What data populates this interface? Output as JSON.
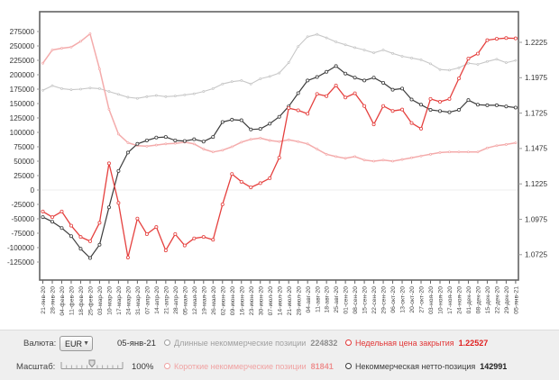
{
  "controls": {
    "currency_label": "Валюта:",
    "currency_value": "EUR",
    "date": "05-янв-21",
    "scale_label": "Масштаб:",
    "scale_value": "100%",
    "legend": [
      {
        "label": "Длинные некоммерческие позиции",
        "value": "224832",
        "color": "#a0a0a0",
        "value_color": "#8d8d8d"
      },
      {
        "label": "Недельная цена закрытия",
        "value": "1.22527",
        "color": "#e23838",
        "value_color": "#e02020"
      },
      {
        "label": "Короткие некоммерческие позиции",
        "value": "81841",
        "color": "#f0a2a2",
        "value_color": "#ee9090"
      },
      {
        "label": "Некоммерческая нетто-позиция",
        "value": "142991",
        "color": "#3a3a3a",
        "value_color": "#222222"
      }
    ]
  },
  "chart_data": {
    "type": "line",
    "title": "",
    "left_axis": {
      "max": 275000,
      "min": -125000,
      "step": 25000
    },
    "right_axis": {
      "max": 1.2225,
      "min": 1.0725,
      "step": 0.025,
      "decimals": 4
    },
    "x_labels": [
      "21-янв-20",
      "28-янв-20",
      "04-фев-20",
      "11-фев-20",
      "18-фев-20",
      "25-фев-20",
      "03-мар-20",
      "10-мар-20",
      "17-мар-20",
      "24-мар-20",
      "31-мар-20",
      "07-апр-20",
      "14-апр-20",
      "21-апр-20",
      "28-апр-20",
      "05-мая-20",
      "12-мая-20",
      "19-мая-20",
      "26-мая-20",
      "02-июн-20",
      "09-июн-20",
      "16-июн-20",
      "23-июн-20",
      "30-июн-20",
      "07-июл-20",
      "14-июл-20",
      "21-июл-20",
      "28-июл-20",
      "04-авг-20",
      "11-авг-20",
      "18-авг-20",
      "25-авг-20",
      "01-сен-20",
      "08-сен-20",
      "15-сен-20",
      "22-сен-20",
      "29-сен-20",
      "06-окт-20",
      "13-окт-20",
      "20-окт-20",
      "27-окт-20",
      "03-ноя-20",
      "10-ноя-20",
      "17-ноя-20",
      "24-ноя-20",
      "01-дек-20",
      "08-дек-20",
      "15-дек-20",
      "22-дек-20",
      "29-дек-20",
      "05-янв-21"
    ],
    "series": [
      {
        "name": "Длинные некоммерческие позиции",
        "axis": "left",
        "color": "#c7c7c7",
        "lw": 1.1,
        "marker_r": 1.0,
        "values": [
          173000,
          181000,
          176000,
          174000,
          175000,
          177000,
          176000,
          171000,
          166000,
          161000,
          159000,
          162000,
          164000,
          162000,
          163000,
          165000,
          167000,
          171000,
          176000,
          184000,
          188000,
          190000,
          184000,
          193000,
          197000,
          203000,
          221000,
          249000,
          266000,
          270000,
          264000,
          257000,
          252000,
          247000,
          243000,
          238000,
          243000,
          237000,
          232000,
          229000,
          226000,
          219000,
          209000,
          208000,
          212000,
          220000,
          218000,
          223000,
          227000,
          221000,
          224832
        ]
      },
      {
        "name": "Короткие некоммерческие позиции",
        "axis": "left",
        "color": "#f4abab",
        "lw": 1.5,
        "marker_r": 1.0,
        "values": [
          220000,
          243000,
          246000,
          248000,
          258000,
          271000,
          210000,
          140000,
          97000,
          82000,
          77000,
          76000,
          78000,
          80000,
          81000,
          83000,
          80000,
          71000,
          66000,
          69000,
          75000,
          83000,
          88000,
          90000,
          86000,
          84000,
          87000,
          84000,
          80000,
          71000,
          62000,
          58000,
          55000,
          58000,
          52000,
          50000,
          52000,
          50000,
          53000,
          56000,
          59000,
          62000,
          65000,
          66000,
          66000,
          66000,
          66000,
          73000,
          77000,
          79000,
          81841
        ]
      },
      {
        "name": "Некоммерческая нетто-позиция",
        "axis": "left",
        "color": "#3c3c3c",
        "lw": 1.2,
        "marker_r": 1.6,
        "values": [
          -47000,
          -55000,
          -66000,
          -80000,
          -102000,
          -118000,
          -95000,
          -30000,
          33000,
          65000,
          80000,
          86000,
          91000,
          92000,
          86000,
          85000,
          88000,
          84000,
          92000,
          118000,
          122000,
          121000,
          105000,
          106000,
          115000,
          127000,
          145000,
          168000,
          190000,
          196000,
          205000,
          215000,
          202000,
          195000,
          190000,
          195000,
          186000,
          174000,
          176000,
          157000,
          148000,
          139000,
          137000,
          135000,
          139000,
          156000,
          148000,
          147000,
          147000,
          145000,
          142991
        ]
      },
      {
        "name": "Недельная цена закрытия",
        "axis": "right",
        "color": "#e5403e",
        "lw": 1.3,
        "marker_r": 1.6,
        "values": [
          1.103,
          1.099,
          1.103,
          1.093,
          1.085,
          1.082,
          1.095,
          1.137,
          1.109,
          1.0705,
          1.098,
          1.087,
          1.092,
          1.0755,
          1.087,
          1.079,
          1.084,
          1.085,
          1.083,
          1.108,
          1.1295,
          1.124,
          1.12,
          1.123,
          1.1265,
          1.141,
          1.176,
          1.1745,
          1.172,
          1.186,
          1.1845,
          1.192,
          1.1835,
          1.1865,
          1.1775,
          1.1645,
          1.1775,
          1.174,
          1.175,
          1.1655,
          1.1615,
          1.1825,
          1.1805,
          1.1825,
          1.197,
          1.211,
          1.2145,
          1.224,
          1.225,
          1.2255,
          1.22527
        ]
      }
    ]
  }
}
